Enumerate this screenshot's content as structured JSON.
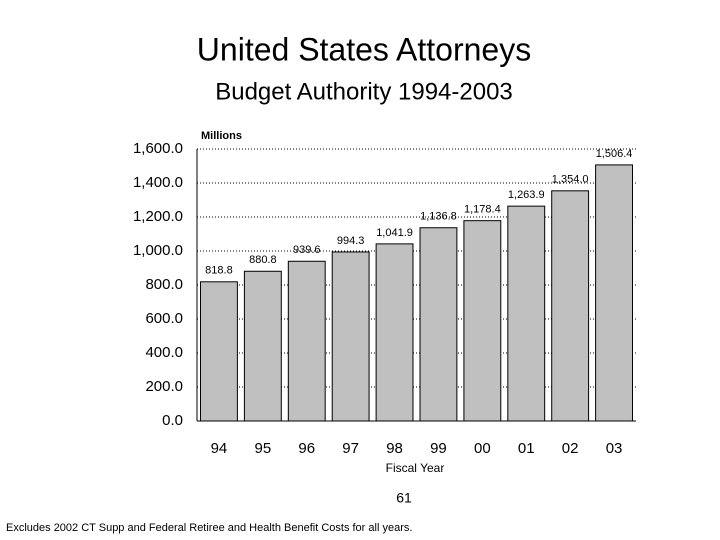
{
  "chart_data": {
    "type": "bar",
    "title": "United States Attorneys",
    "subtitle": "Budget Authority 1994-2003",
    "y_unit_label": "Millions",
    "x_axis_label": "Fiscal Year",
    "page_number": "61",
    "footnote": "Excludes 2002 CT Supp and Federal Retiree and Health Benefit Costs for all years.",
    "categories": [
      "94",
      "95",
      "96",
      "97",
      "98",
      "99",
      "00",
      "01",
      "02",
      "03"
    ],
    "values": [
      818.8,
      880.8,
      939.6,
      994.3,
      1041.9,
      1136.8,
      1178.4,
      1263.9,
      1354.0,
      1506.4
    ],
    "value_labels": [
      "818.8",
      "880.8",
      "939.6",
      "994.3",
      "1,041.9",
      "1,136.8",
      "1,178.4",
      "1,263.9",
      "1,354.0",
      "1,506.4"
    ],
    "color": "#c0c0c0",
    "ylim": [
      0,
      1600
    ],
    "yticks": [
      {
        "value": 0,
        "label": "0.0"
      },
      {
        "value": 200,
        "label": "200.0"
      },
      {
        "value": 400,
        "label": "400.0"
      },
      {
        "value": 600,
        "label": "600.0"
      },
      {
        "value": 800,
        "label": "800.0"
      },
      {
        "value": 1000,
        "label": "1,000.0"
      },
      {
        "value": 1200,
        "label": "1,200.0"
      },
      {
        "value": 1400,
        "label": "1,400.0"
      },
      {
        "value": 1600,
        "label": "1,600.0"
      }
    ],
    "grid": true
  }
}
